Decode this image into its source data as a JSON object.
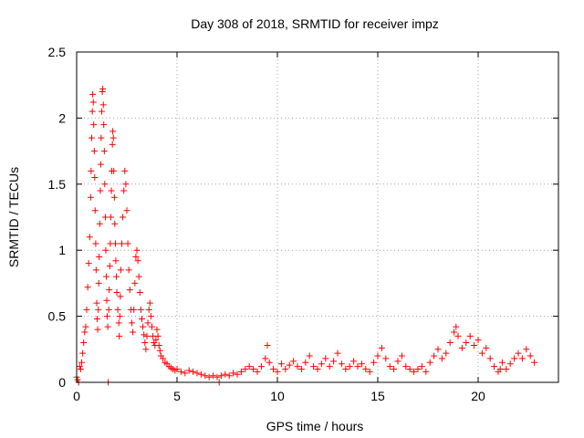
{
  "chart_data": {
    "type": "scatter",
    "title": "Day 308 of 2018, SRMTID for receiver impz",
    "xlabel": "GPS time / hours",
    "ylabel": "SRMTID / TECUs",
    "xlim": [
      0,
      24
    ],
    "ylim": [
      0,
      2.5
    ],
    "x_ticks": [
      0,
      5,
      10,
      15,
      20
    ],
    "x_tick_labels": [
      "0",
      "5",
      "10",
      "15",
      "20"
    ],
    "y_ticks": [
      0,
      0.5,
      1,
      1.5,
      2,
      2.5
    ],
    "y_tick_labels": [
      "0",
      "0.5",
      "1",
      "1.5",
      "2",
      "2.5"
    ],
    "grid": true,
    "marker": "plus",
    "series": [
      {
        "name": "SRMTID",
        "color": "#ff0000",
        "points": [
          [
            0.0,
            0.04
          ],
          [
            0.05,
            0.02
          ],
          [
            0.1,
            0.0
          ],
          [
            0.15,
            0.12
          ],
          [
            0.2,
            0.1
          ],
          [
            0.25,
            0.15
          ],
          [
            0.3,
            0.22
          ],
          [
            0.35,
            0.3
          ],
          [
            0.4,
            0.38
          ],
          [
            0.45,
            0.42
          ],
          [
            0.5,
            0.55
          ],
          [
            0.55,
            0.72
          ],
          [
            0.6,
            0.9
          ],
          [
            0.65,
            1.1
          ],
          [
            0.7,
            1.4
          ],
          [
            0.72,
            1.6
          ],
          [
            0.75,
            1.85
          ],
          [
            0.78,
            2.05
          ],
          [
            0.8,
            2.18
          ],
          [
            0.83,
            2.12
          ],
          [
            0.85,
            1.95
          ],
          [
            0.88,
            1.75
          ],
          [
            0.9,
            1.55
          ],
          [
            0.92,
            1.3
          ],
          [
            0.95,
            1.05
          ],
          [
            0.97,
            0.85
          ],
          [
            1.0,
            0.6
          ],
          [
            1.02,
            0.48
          ],
          [
            1.05,
            0.4
          ],
          [
            1.08,
            0.55
          ],
          [
            1.1,
            0.75
          ],
          [
            1.12,
            0.95
          ],
          [
            1.15,
            1.2
          ],
          [
            1.18,
            1.45
          ],
          [
            1.2,
            1.65
          ],
          [
            1.22,
            1.85
          ],
          [
            1.25,
            2.05
          ],
          [
            1.28,
            2.2
          ],
          [
            1.3,
            2.22
          ],
          [
            1.33,
            2.1
          ],
          [
            1.35,
            1.95
          ],
          [
            1.38,
            1.75
          ],
          [
            1.4,
            1.5
          ],
          [
            1.43,
            1.25
          ],
          [
            1.45,
            1.0
          ],
          [
            1.48,
            0.8
          ],
          [
            1.5,
            0.62
          ],
          [
            1.52,
            0.5
          ],
          [
            1.55,
            0.42
          ],
          [
            1.57,
            0.0
          ],
          [
            1.6,
            0.55
          ],
          [
            1.62,
            0.7
          ],
          [
            1.65,
            0.88
          ],
          [
            1.68,
            1.05
          ],
          [
            1.7,
            1.25
          ],
          [
            1.73,
            1.45
          ],
          [
            1.75,
            1.6
          ],
          [
            1.78,
            1.8
          ],
          [
            1.8,
            1.9
          ],
          [
            1.83,
            1.85
          ],
          [
            1.85,
            1.6
          ],
          [
            1.88,
            1.4
          ],
          [
            1.9,
            1.2
          ],
          [
            1.93,
            1.05
          ],
          [
            1.95,
            0.92
          ],
          [
            1.98,
            0.8
          ],
          [
            2.0,
            0.68
          ],
          [
            2.05,
            0.55
          ],
          [
            2.1,
            0.45
          ],
          [
            2.12,
            0.35
          ],
          [
            2.15,
            0.5
          ],
          [
            2.18,
            0.65
          ],
          [
            2.2,
            0.85
          ],
          [
            2.25,
            1.05
          ],
          [
            2.3,
            1.25
          ],
          [
            2.35,
            1.45
          ],
          [
            2.4,
            1.6
          ],
          [
            2.45,
            1.5
          ],
          [
            2.5,
            1.3
          ],
          [
            2.55,
            1.05
          ],
          [
            2.6,
            0.85
          ],
          [
            2.65,
            0.7
          ],
          [
            2.7,
            0.55
          ],
          [
            2.75,
            0.45
          ],
          [
            2.8,
            0.38
          ],
          [
            2.85,
            0.55
          ],
          [
            2.9,
            0.75
          ],
          [
            2.95,
            0.95
          ],
          [
            3.0,
            1.0
          ],
          [
            3.05,
            0.92
          ],
          [
            3.1,
            0.8
          ],
          [
            3.15,
            0.68
          ],
          [
            3.2,
            0.55
          ],
          [
            3.25,
            0.48
          ],
          [
            3.3,
            0.42
          ],
          [
            3.35,
            0.36
          ],
          [
            3.4,
            0.3
          ],
          [
            3.45,
            0.25
          ],
          [
            3.5,
            0.35
          ],
          [
            3.55,
            0.45
          ],
          [
            3.6,
            0.55
          ],
          [
            3.65,
            0.6
          ],
          [
            3.7,
            0.5
          ],
          [
            3.75,
            0.42
          ],
          [
            3.8,
            0.35
          ],
          [
            3.85,
            0.3
          ],
          [
            3.9,
            0.28
          ],
          [
            3.95,
            0.32
          ],
          [
            4.0,
            0.4
          ],
          [
            4.05,
            0.35
          ],
          [
            4.1,
            0.28
          ],
          [
            4.15,
            0.24
          ],
          [
            4.2,
            0.2
          ],
          [
            4.3,
            0.18
          ],
          [
            4.4,
            0.15
          ],
          [
            4.5,
            0.14
          ],
          [
            4.6,
            0.12
          ],
          [
            4.7,
            0.11
          ],
          [
            4.8,
            0.1
          ],
          [
            4.9,
            0.09
          ],
          [
            5.0,
            0.1
          ],
          [
            5.2,
            0.08
          ],
          [
            5.4,
            0.07
          ],
          [
            5.6,
            0.09
          ],
          [
            5.8,
            0.08
          ],
          [
            6.0,
            0.07
          ],
          [
            6.2,
            0.06
          ],
          [
            6.4,
            0.05
          ],
          [
            6.6,
            0.04
          ],
          [
            6.8,
            0.05
          ],
          [
            7.0,
            0.04
          ],
          [
            7.1,
            0.0
          ],
          [
            7.2,
            0.05
          ],
          [
            7.4,
            0.06
          ],
          [
            7.6,
            0.05
          ],
          [
            7.8,
            0.07
          ],
          [
            8.0,
            0.06
          ],
          [
            8.2,
            0.08
          ],
          [
            8.4,
            0.1
          ],
          [
            8.6,
            0.12
          ],
          [
            8.8,
            0.1
          ],
          [
            9.0,
            0.08
          ],
          [
            9.2,
            0.12
          ],
          [
            9.4,
            0.18
          ],
          [
            9.5,
            0.28
          ],
          [
            9.6,
            0.15
          ],
          [
            9.8,
            0.1
          ],
          [
            10.0,
            0.08
          ],
          [
            10.2,
            0.14
          ],
          [
            10.4,
            0.1
          ],
          [
            10.6,
            0.13
          ],
          [
            10.8,
            0.16
          ],
          [
            11.0,
            0.12
          ],
          [
            11.2,
            0.1
          ],
          [
            11.4,
            0.15
          ],
          [
            11.6,
            0.2
          ],
          [
            11.8,
            0.12
          ],
          [
            12.0,
            0.1
          ],
          [
            12.2,
            0.14
          ],
          [
            12.4,
            0.18
          ],
          [
            12.6,
            0.12
          ],
          [
            12.8,
            0.16
          ],
          [
            13.0,
            0.22
          ],
          [
            13.2,
            0.14
          ],
          [
            13.4,
            0.1
          ],
          [
            13.6,
            0.12
          ],
          [
            13.8,
            0.16
          ],
          [
            14.0,
            0.12
          ],
          [
            14.2,
            0.14
          ],
          [
            14.4,
            0.1
          ],
          [
            14.6,
            0.08
          ],
          [
            14.8,
            0.15
          ],
          [
            15.0,
            0.2
          ],
          [
            15.2,
            0.26
          ],
          [
            15.4,
            0.18
          ],
          [
            15.6,
            0.12
          ],
          [
            15.8,
            0.1
          ],
          [
            16.0,
            0.16
          ],
          [
            16.2,
            0.2
          ],
          [
            16.4,
            0.12
          ],
          [
            16.6,
            0.1
          ],
          [
            16.8,
            0.08
          ],
          [
            17.0,
            0.1
          ],
          [
            17.2,
            0.12
          ],
          [
            17.4,
            0.08
          ],
          [
            17.6,
            0.15
          ],
          [
            17.8,
            0.2
          ],
          [
            18.0,
            0.25
          ],
          [
            18.2,
            0.18
          ],
          [
            18.4,
            0.22
          ],
          [
            18.6,
            0.3
          ],
          [
            18.8,
            0.38
          ],
          [
            18.9,
            0.42
          ],
          [
            19.0,
            0.35
          ],
          [
            19.2,
            0.26
          ],
          [
            19.4,
            0.3
          ],
          [
            19.6,
            0.35
          ],
          [
            19.8,
            0.28
          ],
          [
            20.0,
            0.32
          ],
          [
            20.2,
            0.22
          ],
          [
            20.4,
            0.26
          ],
          [
            20.6,
            0.18
          ],
          [
            20.8,
            0.12
          ],
          [
            21.0,
            0.08
          ],
          [
            21.1,
            0.1
          ],
          [
            21.2,
            0.15
          ],
          [
            21.4,
            0.1
          ],
          [
            21.6,
            0.14
          ],
          [
            21.8,
            0.18
          ],
          [
            22.0,
            0.22
          ],
          [
            22.2,
            0.18
          ],
          [
            22.4,
            0.25
          ],
          [
            22.6,
            0.2
          ],
          [
            22.8,
            0.15
          ]
        ]
      }
    ]
  }
}
